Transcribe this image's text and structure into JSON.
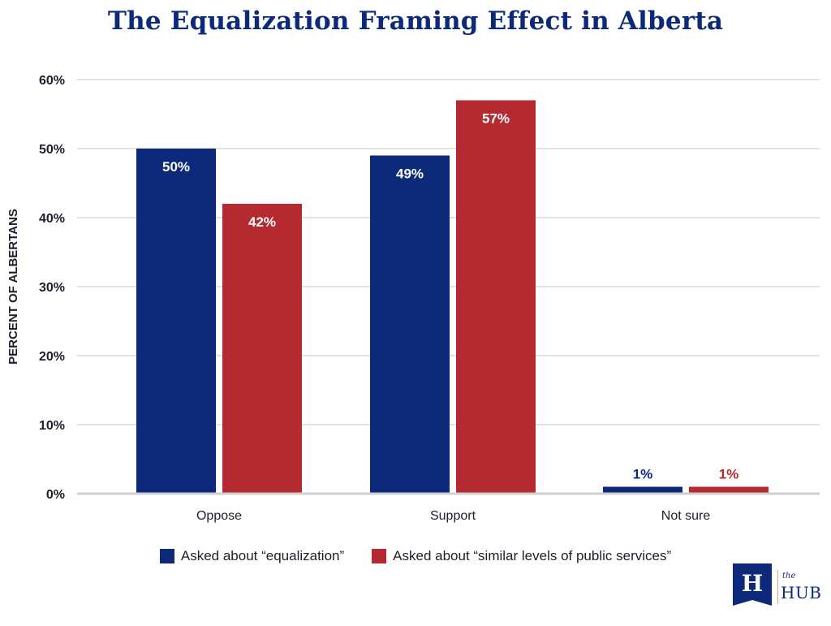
{
  "chart_data": {
    "type": "bar",
    "title": "The Equalization Framing Effect in Alberta",
    "ylabel": "PERCENT OF ALBERTANS",
    "xlabel": "",
    "ylim": [
      0,
      60
    ],
    "yticks": [
      0,
      10,
      20,
      30,
      40,
      50,
      60
    ],
    "ytick_labels": [
      "0%",
      "10%",
      "20%",
      "30%",
      "40%",
      "50%",
      "60%"
    ],
    "categories": [
      "Oppose",
      "Support",
      "Not sure"
    ],
    "series": [
      {
        "name": "Asked about “equalization”",
        "color": "#0d2a7a",
        "values": [
          50,
          49,
          1
        ],
        "labels": [
          "50%",
          "49%",
          "1%"
        ]
      },
      {
        "name": "Asked about “similar levels of public services”",
        "color": "#b52a30",
        "values": [
          42,
          57,
          1
        ],
        "labels": [
          "42%",
          "57%",
          "1%"
        ]
      }
    ],
    "grid": true,
    "legend_position": "bottom-center"
  },
  "logo": {
    "mark": "H",
    "the": "the",
    "hub": "HUB"
  }
}
